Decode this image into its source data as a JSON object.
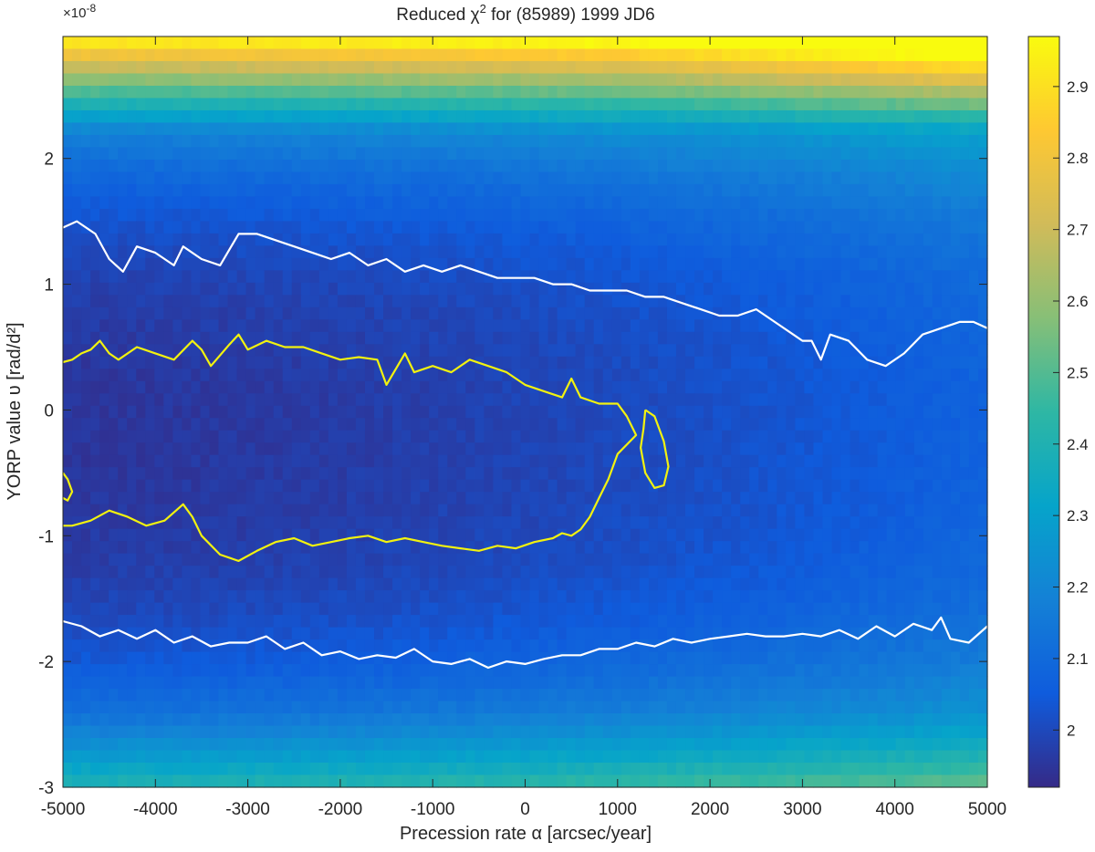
{
  "chart_data": {
    "type": "heatmap",
    "title": "Reduced χ",
    "title_superscript": "2",
    "title_suffix": " for (85989) 1999 JD6",
    "xlabel": "Precession rate α [arcsec/year]",
    "ylabel": "YORP value υ [rad/d²]",
    "xlim": [
      -5000,
      5000
    ],
    "ylim": [
      -3,
      2.97
    ],
    "y_exponent_label": "×10",
    "y_exponent_value": "-8",
    "xticks": [
      -5000,
      -4000,
      -3000,
      -2000,
      -1000,
      0,
      1000,
      2000,
      3000,
      4000,
      5000
    ],
    "xtick_labels": [
      "-5000",
      "-4000",
      "-3000",
      "-2000",
      "-1000",
      "0",
      "1000",
      "2000",
      "3000",
      "4000",
      "5000"
    ],
    "yticks": [
      -3,
      -2,
      -1,
      0,
      1,
      2
    ],
    "ytick_labels": [
      "-3",
      "-2",
      "-1",
      "0",
      "1",
      "2"
    ],
    "colorbar": {
      "min": 1.92,
      "max": 2.97,
      "ticks": [
        2.0,
        2.1,
        2.2,
        2.3,
        2.4,
        2.5,
        2.6,
        2.7,
        2.8,
        2.9
      ],
      "tick_labels": [
        "2",
        "2.1",
        "2.2",
        "2.3",
        "2.4",
        "2.5",
        "2.6",
        "2.7",
        "2.8",
        "2.9"
      ],
      "colormap": "parula",
      "colormap_stops": [
        "#352a87",
        "#0f5cdd",
        "#1481d6",
        "#06a4ca",
        "#2eb7a4",
        "#87bf77",
        "#d1bb59",
        "#fec832",
        "#f9fb0e"
      ]
    },
    "grid": false,
    "legend": "none",
    "grid_resolution": {
      "nx": 101,
      "ny": 61
    },
    "contours": [
      {
        "name": "white-upper",
        "color": "#ffffff",
        "points": [
          [
            -5000,
            1.45
          ],
          [
            -4850,
            1.5
          ],
          [
            -4650,
            1.4
          ],
          [
            -4500,
            1.2
          ],
          [
            -4350,
            1.1
          ],
          [
            -4200,
            1.3
          ],
          [
            -4000,
            1.25
          ],
          [
            -3800,
            1.15
          ],
          [
            -3700,
            1.3
          ],
          [
            -3500,
            1.2
          ],
          [
            -3300,
            1.15
          ],
          [
            -3100,
            1.4
          ],
          [
            -2900,
            1.4
          ],
          [
            -2700,
            1.35
          ],
          [
            -2500,
            1.3
          ],
          [
            -2300,
            1.25
          ],
          [
            -2100,
            1.2
          ],
          [
            -1900,
            1.25
          ],
          [
            -1700,
            1.15
          ],
          [
            -1500,
            1.2
          ],
          [
            -1300,
            1.1
          ],
          [
            -1100,
            1.15
          ],
          [
            -900,
            1.1
          ],
          [
            -700,
            1.15
          ],
          [
            -500,
            1.1
          ],
          [
            -300,
            1.05
          ],
          [
            -100,
            1.05
          ],
          [
            100,
            1.05
          ],
          [
            300,
            1.0
          ],
          [
            500,
            1.0
          ],
          [
            700,
            0.95
          ],
          [
            900,
            0.95
          ],
          [
            1100,
            0.95
          ],
          [
            1300,
            0.9
          ],
          [
            1500,
            0.9
          ],
          [
            1700,
            0.85
          ],
          [
            1900,
            0.8
          ],
          [
            2100,
            0.75
          ],
          [
            2300,
            0.75
          ],
          [
            2500,
            0.8
          ],
          [
            2700,
            0.7
          ],
          [
            2900,
            0.6
          ],
          [
            3000,
            0.55
          ],
          [
            3100,
            0.55
          ],
          [
            3200,
            0.4
          ],
          [
            3300,
            0.6
          ],
          [
            3500,
            0.55
          ],
          [
            3700,
            0.4
          ],
          [
            3900,
            0.35
          ],
          [
            4100,
            0.45
          ],
          [
            4300,
            0.6
          ],
          [
            4500,
            0.65
          ],
          [
            4700,
            0.7
          ],
          [
            4850,
            0.7
          ],
          [
            5000,
            0.65
          ]
        ]
      },
      {
        "name": "white-lower",
        "color": "#ffffff",
        "points": [
          [
            -5000,
            -1.68
          ],
          [
            -4800,
            -1.72
          ],
          [
            -4600,
            -1.8
          ],
          [
            -4400,
            -1.75
          ],
          [
            -4200,
            -1.82
          ],
          [
            -4000,
            -1.75
          ],
          [
            -3800,
            -1.85
          ],
          [
            -3600,
            -1.8
          ],
          [
            -3400,
            -1.88
          ],
          [
            -3200,
            -1.85
          ],
          [
            -3000,
            -1.85
          ],
          [
            -2800,
            -1.8
          ],
          [
            -2600,
            -1.9
          ],
          [
            -2400,
            -1.85
          ],
          [
            -2200,
            -1.95
          ],
          [
            -2000,
            -1.92
          ],
          [
            -1800,
            -1.98
          ],
          [
            -1600,
            -1.95
          ],
          [
            -1400,
            -1.97
          ],
          [
            -1200,
            -1.9
          ],
          [
            -1000,
            -2.0
          ],
          [
            -800,
            -2.02
          ],
          [
            -600,
            -1.98
          ],
          [
            -400,
            -2.05
          ],
          [
            -200,
            -2.0
          ],
          [
            0,
            -2.02
          ],
          [
            200,
            -1.98
          ],
          [
            400,
            -1.95
          ],
          [
            600,
            -1.95
          ],
          [
            800,
            -1.9
          ],
          [
            1000,
            -1.9
          ],
          [
            1200,
            -1.85
          ],
          [
            1400,
            -1.88
          ],
          [
            1600,
            -1.82
          ],
          [
            1800,
            -1.85
          ],
          [
            2000,
            -1.82
          ],
          [
            2200,
            -1.8
          ],
          [
            2400,
            -1.78
          ],
          [
            2600,
            -1.8
          ],
          [
            2800,
            -1.8
          ],
          [
            3000,
            -1.78
          ],
          [
            3200,
            -1.8
          ],
          [
            3400,
            -1.75
          ],
          [
            3600,
            -1.82
          ],
          [
            3800,
            -1.72
          ],
          [
            4000,
            -1.8
          ],
          [
            4200,
            -1.7
          ],
          [
            4400,
            -1.75
          ],
          [
            4500,
            -1.65
          ],
          [
            4600,
            -1.82
          ],
          [
            4800,
            -1.85
          ],
          [
            5000,
            -1.72
          ]
        ]
      },
      {
        "name": "yellow-central",
        "color": "#f2f20f",
        "points": [
          [
            -5000,
            0.38
          ],
          [
            -4900,
            0.4
          ],
          [
            -4800,
            0.45
          ],
          [
            -4700,
            0.48
          ],
          [
            -4600,
            0.55
          ],
          [
            -4500,
            0.45
          ],
          [
            -4400,
            0.4
          ],
          [
            -4200,
            0.5
          ],
          [
            -4000,
            0.45
          ],
          [
            -3800,
            0.4
          ],
          [
            -3600,
            0.55
          ],
          [
            -3500,
            0.48
          ],
          [
            -3400,
            0.35
          ],
          [
            -3200,
            0.52
          ],
          [
            -3100,
            0.6
          ],
          [
            -3000,
            0.48
          ],
          [
            -2800,
            0.55
          ],
          [
            -2600,
            0.5
          ],
          [
            -2400,
            0.5
          ],
          [
            -2200,
            0.45
          ],
          [
            -2000,
            0.4
          ],
          [
            -1800,
            0.42
          ],
          [
            -1600,
            0.4
          ],
          [
            -1500,
            0.2
          ],
          [
            -1300,
            0.45
          ],
          [
            -1200,
            0.3
          ],
          [
            -1000,
            0.35
          ],
          [
            -800,
            0.3
          ],
          [
            -600,
            0.4
          ],
          [
            -400,
            0.35
          ],
          [
            -200,
            0.3
          ],
          [
            0,
            0.2
          ],
          [
            200,
            0.15
          ],
          [
            400,
            0.1
          ],
          [
            500,
            0.25
          ],
          [
            600,
            0.1
          ],
          [
            800,
            0.05
          ],
          [
            1000,
            0.05
          ],
          [
            1100,
            -0.05
          ],
          [
            1200,
            -0.2
          ],
          [
            1000,
            -0.35
          ],
          [
            900,
            -0.55
          ],
          [
            800,
            -0.7
          ],
          [
            700,
            -0.85
          ],
          [
            600,
            -0.95
          ],
          [
            500,
            -1.0
          ],
          [
            400,
            -0.98
          ],
          [
            300,
            -1.02
          ],
          [
            100,
            -1.05
          ],
          [
            -100,
            -1.1
          ],
          [
            -300,
            -1.08
          ],
          [
            -500,
            -1.12
          ],
          [
            -700,
            -1.1
          ],
          [
            -900,
            -1.08
          ],
          [
            -1100,
            -1.05
          ],
          [
            -1300,
            -1.02
          ],
          [
            -1500,
            -1.05
          ],
          [
            -1700,
            -1.0
          ],
          [
            -1900,
            -1.02
          ],
          [
            -2100,
            -1.05
          ],
          [
            -2300,
            -1.08
          ],
          [
            -2500,
            -1.02
          ],
          [
            -2700,
            -1.05
          ],
          [
            -2900,
            -1.12
          ],
          [
            -3100,
            -1.2
          ],
          [
            -3300,
            -1.15
          ],
          [
            -3500,
            -1.0
          ],
          [
            -3600,
            -0.85
          ],
          [
            -3700,
            -0.75
          ],
          [
            -3900,
            -0.88
          ],
          [
            -4100,
            -0.92
          ],
          [
            -4300,
            -0.85
          ],
          [
            -4500,
            -0.8
          ],
          [
            -4700,
            -0.88
          ],
          [
            -4900,
            -0.92
          ],
          [
            -5000,
            -0.92
          ]
        ]
      },
      {
        "name": "yellow-right-island",
        "color": "#f2f20f",
        "points": [
          [
            1300,
            0.0
          ],
          [
            1400,
            -0.05
          ],
          [
            1500,
            -0.25
          ],
          [
            1550,
            -0.45
          ],
          [
            1500,
            -0.6
          ],
          [
            1400,
            -0.62
          ],
          [
            1300,
            -0.5
          ],
          [
            1250,
            -0.3
          ],
          [
            1280,
            -0.15
          ],
          [
            1300,
            0.0
          ]
        ]
      },
      {
        "name": "yellow-left-strip",
        "color": "#f2f20f",
        "points": [
          [
            -5000,
            -0.5
          ],
          [
            -4950,
            -0.55
          ],
          [
            -4900,
            -0.65
          ],
          [
            -4950,
            -0.72
          ],
          [
            -5000,
            -0.7
          ]
        ]
      }
    ]
  }
}
